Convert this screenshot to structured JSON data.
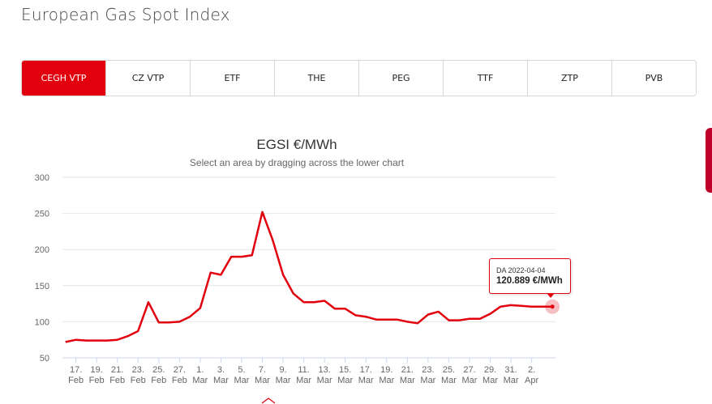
{
  "page": {
    "title": "European Gas Spot Index"
  },
  "tabs": [
    {
      "label": "CEGH VTP",
      "active": true
    },
    {
      "label": "CZ VTP",
      "active": false
    },
    {
      "label": "ETF",
      "active": false
    },
    {
      "label": "THE",
      "active": false
    },
    {
      "label": "PEG",
      "active": false
    },
    {
      "label": "TTF",
      "active": false
    },
    {
      "label": "ZTP",
      "active": false
    },
    {
      "label": "PVB",
      "active": false
    }
  ],
  "colors": {
    "accent": "#e2000f",
    "grid": "#e6e6e6",
    "axis": "#999999"
  },
  "chart_data": {
    "type": "line",
    "title": "EGSI €/MWh",
    "subtitle": "Select an area by dragging across the lower chart",
    "ylim": [
      50,
      300
    ],
    "yticks": [
      50,
      100,
      150,
      200,
      250,
      300
    ],
    "x_start": "2022-02-16",
    "x_end": "2022-04-04",
    "x_tick_labels": [
      [
        "17.",
        "Feb"
      ],
      [
        "19.",
        "Feb"
      ],
      [
        "21.",
        "Feb"
      ],
      [
        "23.",
        "Feb"
      ],
      [
        "25.",
        "Feb"
      ],
      [
        "27.",
        "Feb"
      ],
      [
        "1.",
        "Mar"
      ],
      [
        "3.",
        "Mar"
      ],
      [
        "5.",
        "Mar"
      ],
      [
        "7.",
        "Mar"
      ],
      [
        "9.",
        "Mar"
      ],
      [
        "11.",
        "Mar"
      ],
      [
        "13.",
        "Mar"
      ],
      [
        "15.",
        "Mar"
      ],
      [
        "17.",
        "Mar"
      ],
      [
        "19.",
        "Mar"
      ],
      [
        "21.",
        "Mar"
      ],
      [
        "23.",
        "Mar"
      ],
      [
        "25.",
        "Mar"
      ],
      [
        "27.",
        "Mar"
      ],
      [
        "29.",
        "Mar"
      ],
      [
        "31.",
        "Mar"
      ],
      [
        "2.",
        "Apr"
      ]
    ],
    "series": [
      {
        "x": [
          "2022-02-16",
          "2022-02-17",
          "2022-02-18",
          "2022-02-19",
          "2022-02-20",
          "2022-02-21",
          "2022-02-22",
          "2022-02-23",
          "2022-02-24",
          "2022-02-25",
          "2022-02-26",
          "2022-02-27",
          "2022-02-28",
          "2022-03-01",
          "2022-03-02",
          "2022-03-03",
          "2022-03-04",
          "2022-03-05",
          "2022-03-06",
          "2022-03-07",
          "2022-03-08",
          "2022-03-09",
          "2022-03-10",
          "2022-03-11",
          "2022-03-12",
          "2022-03-13",
          "2022-03-14",
          "2022-03-15",
          "2022-03-16",
          "2022-03-17",
          "2022-03-18",
          "2022-03-19",
          "2022-03-20",
          "2022-03-21",
          "2022-03-22",
          "2022-03-23",
          "2022-03-24",
          "2022-03-25",
          "2022-03-26",
          "2022-03-27",
          "2022-03-28",
          "2022-03-29",
          "2022-03-30",
          "2022-03-31",
          "2022-04-01",
          "2022-04-02",
          "2022-04-03",
          "2022-04-04"
        ],
        "values": [
          72,
          75,
          74,
          74,
          74,
          75,
          80,
          87,
          127,
          99,
          99,
          100,
          107,
          119,
          168,
          165,
          190,
          190,
          192,
          252,
          213,
          165,
          139,
          127,
          127,
          129,
          118,
          118,
          109,
          107,
          103,
          103,
          103,
          100,
          98,
          110,
          114,
          102,
          102,
          104,
          104,
          111,
          121,
          123,
          122,
          121,
          121,
          120.889
        ]
      }
    ],
    "grid": true,
    "legend": "none"
  },
  "tooltip": {
    "date": "DA 2022-04-04",
    "value": "120.889 €/MWh"
  }
}
